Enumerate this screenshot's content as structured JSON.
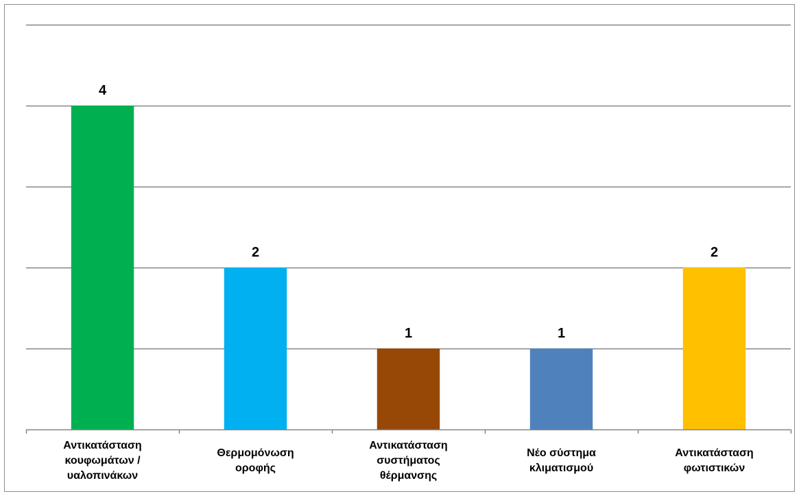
{
  "chart_data": {
    "type": "bar",
    "title": "",
    "xlabel": "",
    "ylabel": "",
    "ylim": [
      0,
      5
    ],
    "grid": true,
    "legend": "none",
    "categories": [
      [
        "Αντικατάσταση",
        "κουφωμάτων /",
        "υαλοπινάκων"
      ],
      [
        "Θερμομόνωση",
        "οροφής"
      ],
      [
        "Αντικατάσταση",
        "συστήματος",
        "θέρμανσης"
      ],
      [
        "Νέο σύστημα",
        "κλιματισμού"
      ],
      [
        "Αντικατάσταση",
        "φωτιστικών"
      ]
    ],
    "values": [
      4,
      2,
      1,
      1,
      2
    ],
    "colors": [
      "#00b050",
      "#00b0f0",
      "#974706",
      "#4f81bd",
      "#ffc000"
    ]
  }
}
